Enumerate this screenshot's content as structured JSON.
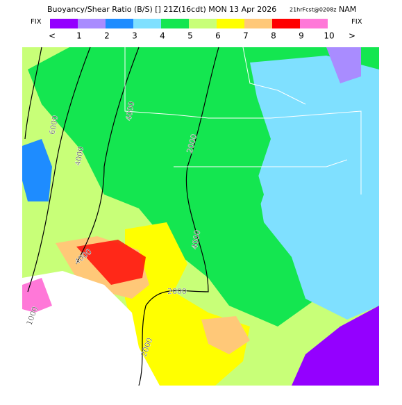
{
  "header": {
    "title": "Buoyancy/Shear Ratio (B/S) [] 21Z(16cdt) MON 13 Apr 2026",
    "run": "21hrFcst@0208z",
    "model": "NAM"
  },
  "legend": {
    "fix_left": "FIX",
    "fix_right": "FIX",
    "below": "<",
    "above": ">",
    "labels": [
      "1",
      "2",
      "3",
      "4",
      "5",
      "6",
      "7",
      "8",
      "9",
      "10"
    ],
    "colors": [
      "#9400ff",
      "#a98cff",
      "#1e8cff",
      "#7fe0ff",
      "#14e650",
      "#c8ff78",
      "#ffff00",
      "#ffc878",
      "#ff0000",
      "#ff78d8"
    ]
  },
  "map": {
    "contour_labels": [
      "6000",
      "4000",
      "4000",
      "2000",
      "4000",
      "2000",
      "4000",
      "1000",
      "2000"
    ]
  }
}
